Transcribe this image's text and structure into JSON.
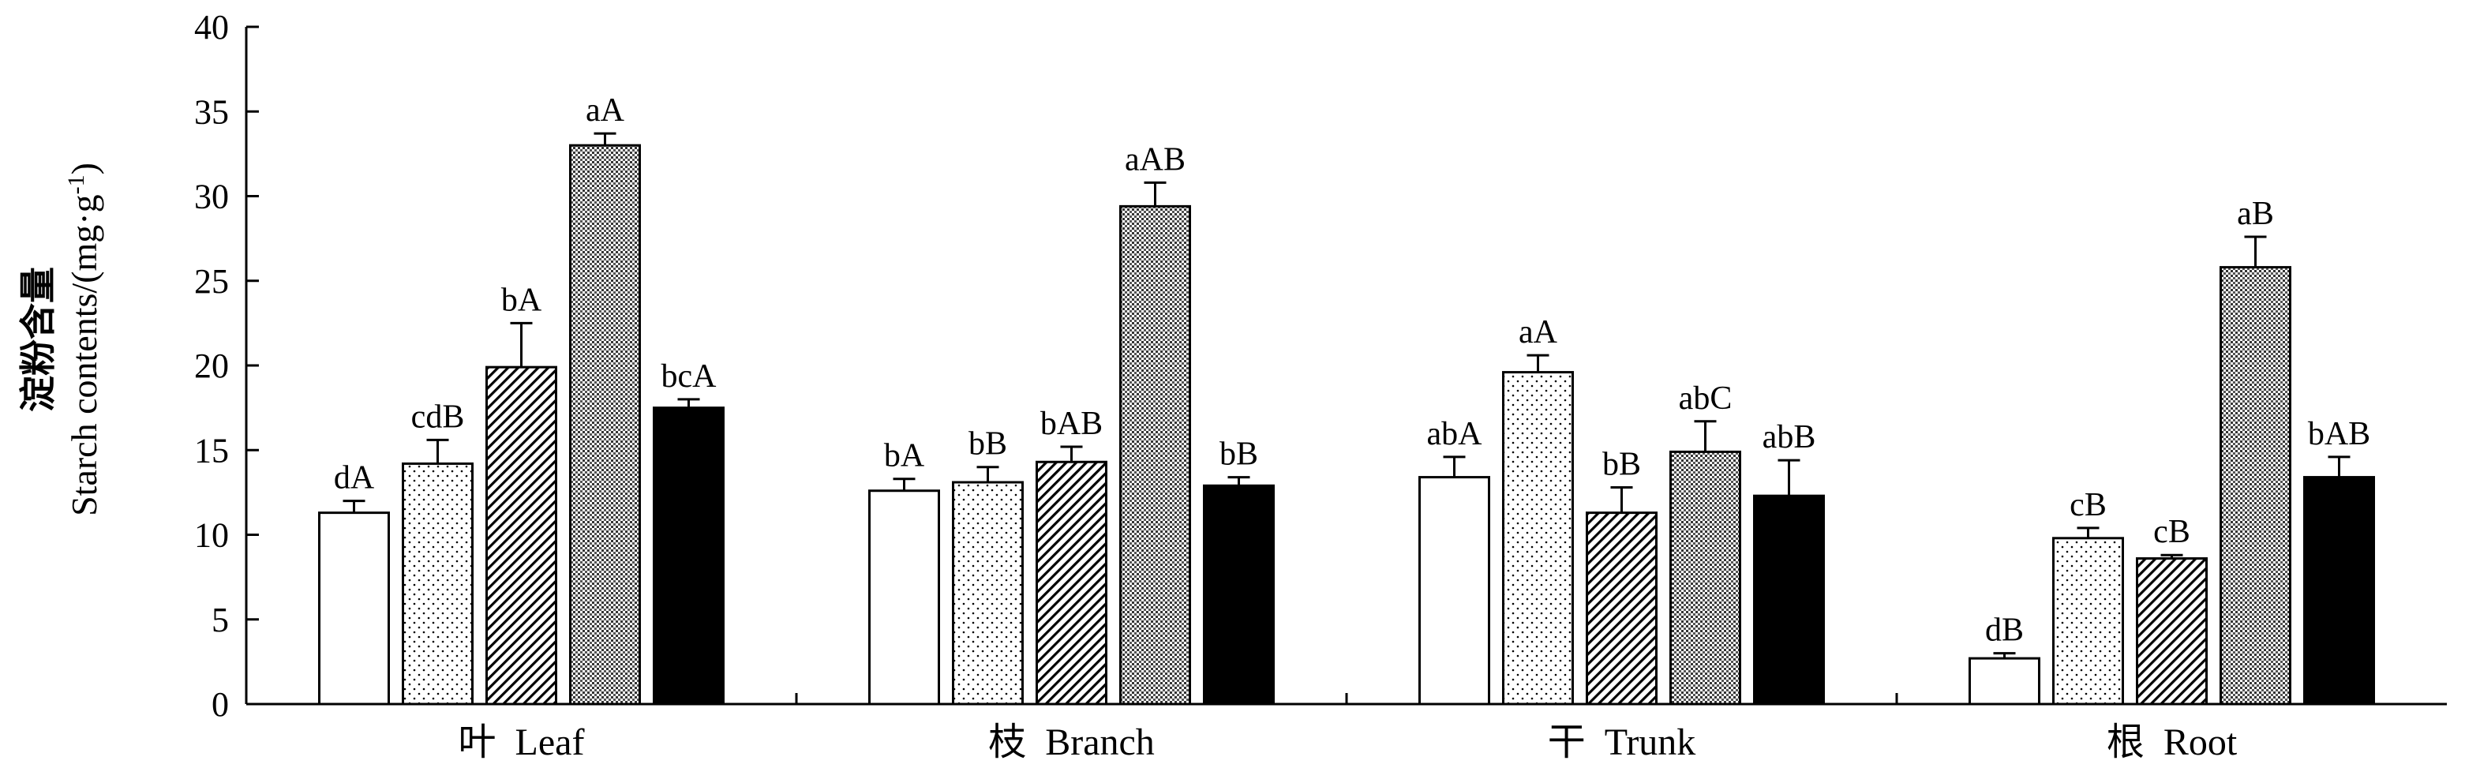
{
  "chart_data": {
    "type": "bar",
    "ylabel_cn": "淀粉含量",
    "ylabel_en": "Starch contents/(mg·g",
    "ylabel_sup": "-1",
    "ylabel_end": ")",
    "ylim": [
      0,
      40
    ],
    "yticks": [
      0,
      5,
      10,
      15,
      20,
      25,
      30,
      35,
      40
    ],
    "categories": [
      "叶  Leaf",
      "枝  Branch",
      "干  Trunk",
      "根  Root"
    ],
    "series_patterns": [
      "white",
      "dots",
      "diagonal",
      "dense-dots",
      "black"
    ],
    "groups": [
      {
        "values": [
          11.3,
          14.2,
          19.9,
          33.0,
          17.5
        ],
        "errors": [
          0.7,
          1.4,
          2.6,
          0.7,
          0.5
        ],
        "labels": [
          "dA",
          "cdB",
          "bA",
          "aA",
          "bcA"
        ]
      },
      {
        "values": [
          12.6,
          13.1,
          14.3,
          29.4,
          12.9
        ],
        "errors": [
          0.7,
          0.9,
          0.9,
          1.4,
          0.5
        ],
        "labels": [
          "bA",
          "bB",
          "bAB",
          "aAB",
          "bB"
        ]
      },
      {
        "values": [
          13.4,
          19.6,
          11.3,
          14.9,
          12.3
        ],
        "errors": [
          1.2,
          1.0,
          1.5,
          1.8,
          2.1
        ],
        "labels": [
          "abA",
          "aA",
          "bB",
          "abC",
          "abB"
        ]
      },
      {
        "values": [
          2.7,
          9.8,
          8.6,
          25.8,
          13.4
        ],
        "errors": [
          0.3,
          0.6,
          0.2,
          1.8,
          1.2
        ],
        "labels": [
          "dB",
          "cB",
          "cB",
          "aB",
          "bAB"
        ]
      }
    ]
  }
}
